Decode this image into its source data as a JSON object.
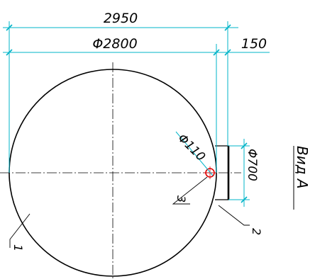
{
  "drawing": {
    "view_label": "Вид А",
    "dimensions": {
      "overall_width": "2950",
      "circle_diameter": "Φ2800",
      "offset": "150",
      "hole_diameter": "Φ110",
      "flange_diameter": "Φ700"
    },
    "leaders": {
      "part_1": "1",
      "part_2": "2",
      "part_3": "3"
    },
    "colors": {
      "dimension_lines": "#00b4c8",
      "outline": "#000000",
      "hole": "#e00000"
    }
  }
}
